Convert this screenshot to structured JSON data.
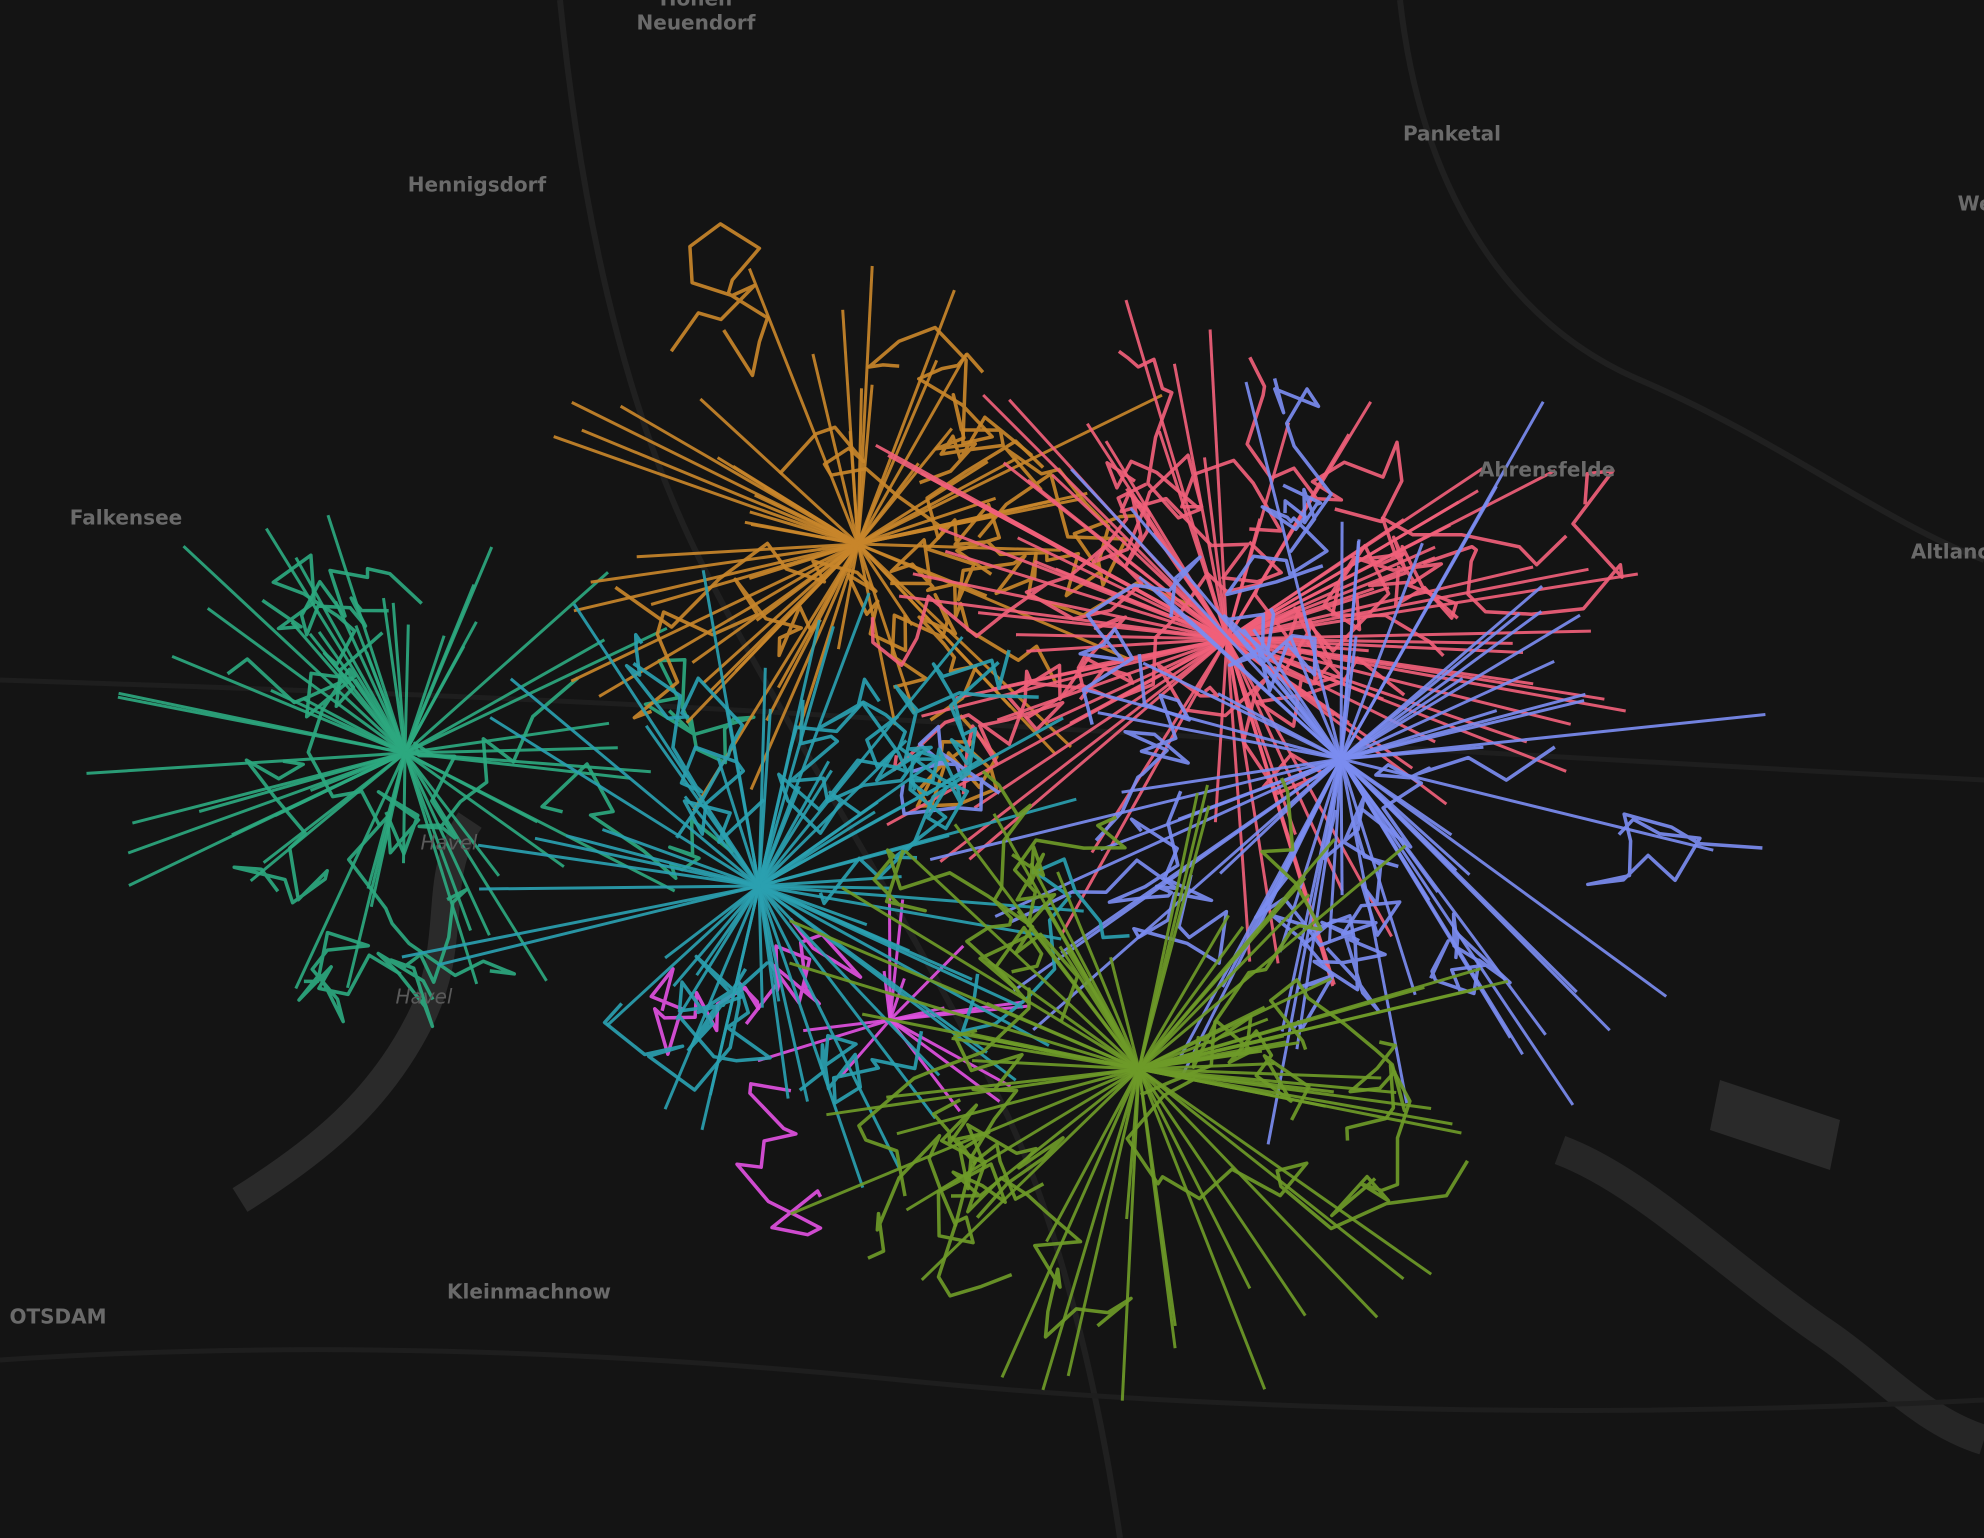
{
  "map": {
    "labels": [
      "Hohen",
      "Neuendorf",
      "Hennigsdorf",
      "Panketal",
      "Wer",
      "Falkensee",
      "Ahrensfelde",
      "Altlanc",
      "Havel",
      "Havel",
      "Kleinmachnow",
      "OTSDAM"
    ]
  }
}
